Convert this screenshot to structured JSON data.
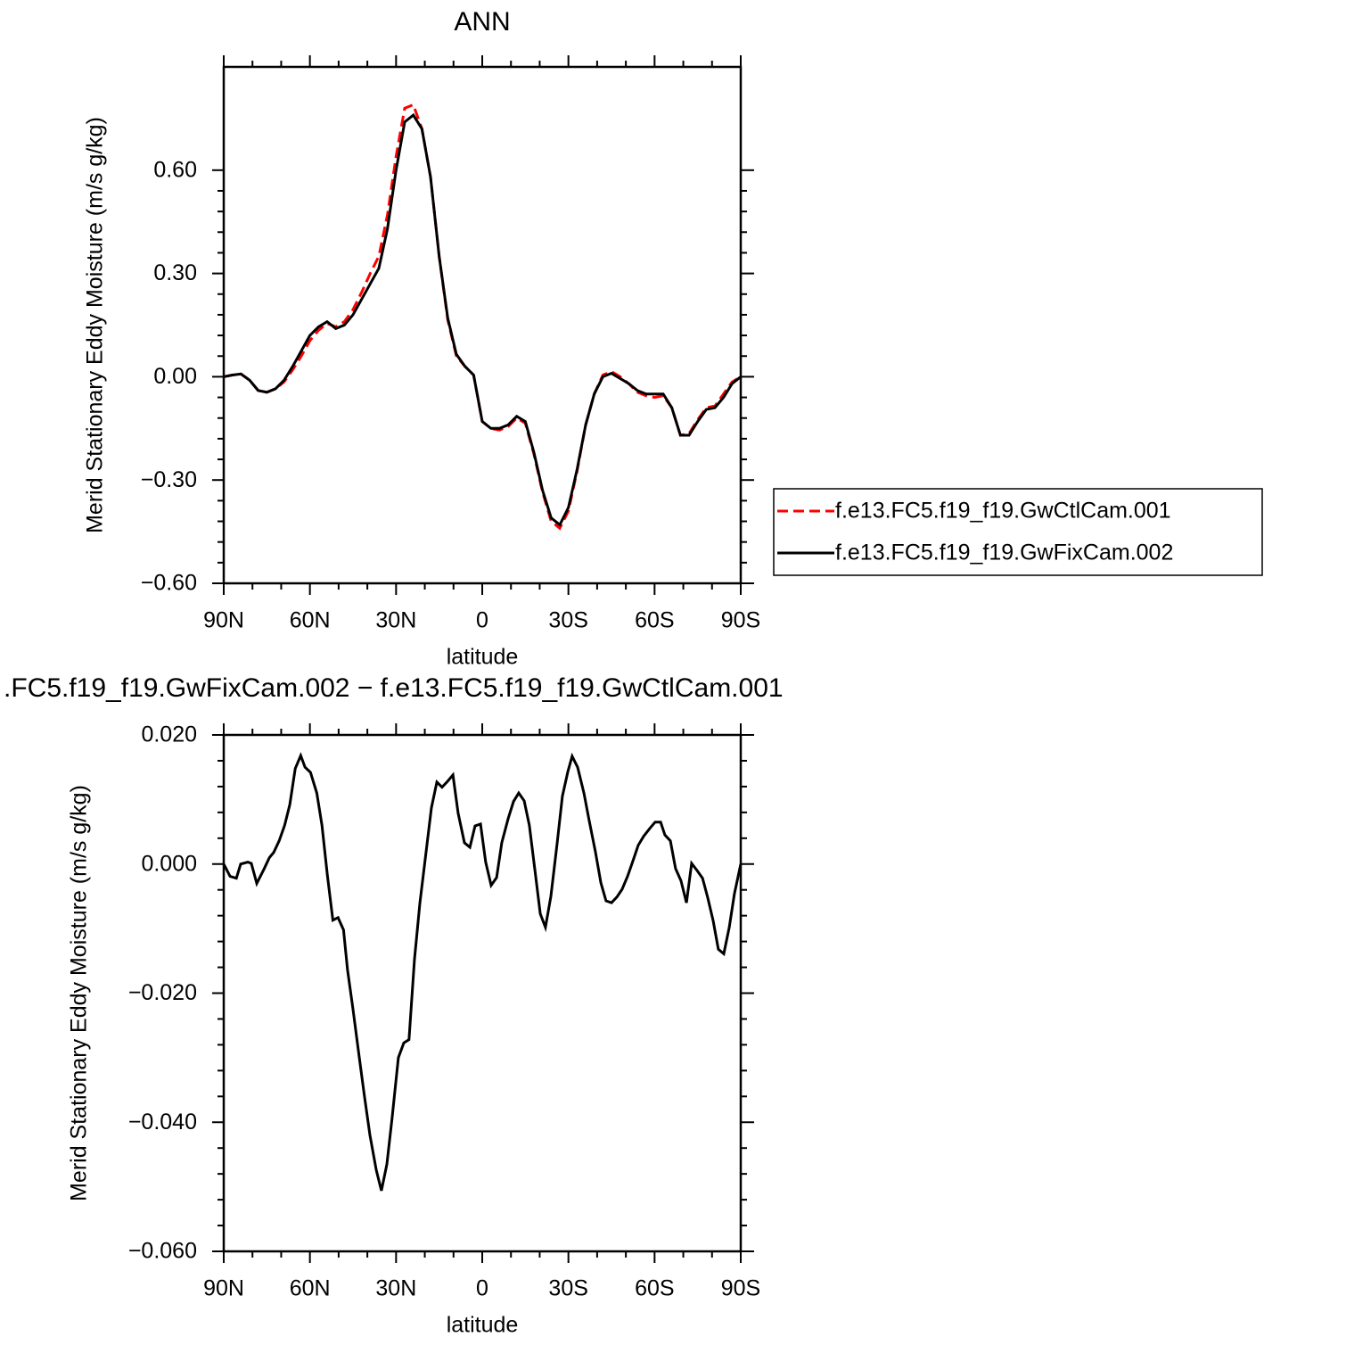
{
  "chart_data": [
    {
      "type": "line",
      "title": "ANN",
      "xlabel": "latitude",
      "ylabel": "Merid Stationary Eddy Moisture (m/s g/kg)",
      "x": [
        90,
        87,
        84,
        81,
        78,
        75,
        72,
        69,
        66,
        63,
        60,
        57,
        54,
        51,
        48,
        45,
        42,
        39,
        36,
        33,
        30,
        27,
        24,
        21,
        18,
        15,
        12,
        9,
        6,
        3,
        0,
        -3,
        -6,
        -9,
        -12,
        -15,
        -18,
        -21,
        -24,
        -27,
        -30,
        -33,
        -36,
        -39,
        -42,
        -45,
        -48,
        -51,
        -54,
        -57,
        -60,
        -63,
        -66,
        -69,
        -72,
        -75,
        -78,
        -81,
        -84,
        -87,
        -90
      ],
      "series": [
        {
          "name": "f.e13.FC5.f19_f19.GwCtlCam.001",
          "color": "#ff0000",
          "linestyle": "dashed",
          "values": [
            0,
            0.005,
            0.008,
            -0.01,
            -0.04,
            -0.045,
            -0.035,
            -0.015,
            0.02,
            0.06,
            0.105,
            0.135,
            0.155,
            0.145,
            0.16,
            0.195,
            0.245,
            0.3,
            0.35,
            0.47,
            0.64,
            0.78,
            0.79,
            0.72,
            0.58,
            0.35,
            0.165,
            0.06,
            0.03,
            0.005,
            -0.13,
            -0.15,
            -0.155,
            -0.145,
            -0.12,
            -0.135,
            -0.225,
            -0.335,
            -0.42,
            -0.44,
            -0.39,
            -0.275,
            -0.14,
            -0.05,
            0.005,
            0.015,
            0,
            -0.02,
            -0.045,
            -0.055,
            -0.06,
            -0.055,
            -0.09,
            -0.17,
            -0.165,
            -0.125,
            -0.09,
            -0.085,
            -0.05,
            -0.015,
            0
          ]
        },
        {
          "name": "f.e13.FC5.f19_f19.GwFixCam.002",
          "color": "#000000",
          "linestyle": "solid",
          "values": [
            0,
            0.005,
            0.008,
            -0.01,
            -0.04,
            -0.045,
            -0.035,
            -0.01,
            0.03,
            0.075,
            0.12,
            0.145,
            0.16,
            0.14,
            0.15,
            0.18,
            0.225,
            0.27,
            0.315,
            0.43,
            0.6,
            0.74,
            0.76,
            0.72,
            0.58,
            0.35,
            0.17,
            0.065,
            0.03,
            0.005,
            -0.13,
            -0.15,
            -0.15,
            -0.14,
            -0.115,
            -0.13,
            -0.22,
            -0.33,
            -0.41,
            -0.43,
            -0.38,
            -0.27,
            -0.14,
            -0.05,
            0,
            0.01,
            -0.005,
            -0.02,
            -0.04,
            -0.05,
            -0.05,
            -0.05,
            -0.09,
            -0.17,
            -0.17,
            -0.13,
            -0.095,
            -0.09,
            -0.06,
            -0.02,
            0
          ]
        }
      ],
      "xlim": [
        90,
        -90
      ],
      "xticks": [
        {
          "value": 90,
          "label": "90N"
        },
        {
          "value": 60,
          "label": "60N"
        },
        {
          "value": 30,
          "label": "30N"
        },
        0,
        {
          "value": -30,
          "label": "30S"
        },
        {
          "value": -60,
          "label": "60S"
        },
        {
          "value": -90,
          "label": "90S"
        }
      ],
      "ylim": [
        -0.6,
        0.9
      ],
      "yticks": [
        {
          "value": -0.6,
          "label": "−0.60"
        },
        {
          "value": -0.3,
          "label": "−0.30"
        },
        {
          "value": 0,
          "label": "0.00"
        },
        {
          "value": 0.3,
          "label": "0.30"
        },
        {
          "value": 0.6,
          "label": "0.60"
        }
      ],
      "legend": "right"
    },
    {
      "type": "line",
      "title": ".FC5.f19_f19.GwFixCam.002 − f.e13.FC5.f19_f19.GwCtlCam.001",
      "xlabel": "latitude",
      "ylabel": "Merid Stationary Eddy Moisture (m/s g/kg)",
      "x": [
        90,
        87.8,
        85.6,
        84.1,
        81.6,
        80.4,
        78.5,
        76.0,
        74.1,
        72.6,
        70.7,
        68.8,
        67.0,
        65.1,
        63.2,
        61.7,
        59.8,
        57.6,
        55.8,
        53.9,
        52.0,
        50.2,
        48.3,
        46.9,
        45.0,
        42.8,
        41.0,
        39.1,
        36.9,
        35.1,
        33.2,
        31.4,
        29.2,
        27.3,
        25.5,
        23.6,
        21.7,
        19.9,
        17.7,
        15.8,
        14.0,
        12.1,
        10.2,
        8.4,
        6.2,
        4.3,
        2.5,
        0.6,
        -1.2,
        -3.1,
        -5.0,
        -6.8,
        -9.0,
        -10.9,
        -12.7,
        -14.6,
        -16.4,
        -18.3,
        -20.2,
        -22.0,
        -23.9,
        -26.1,
        -27.9,
        -29.8,
        -31.3,
        -33.2,
        -35.4,
        -37.2,
        -39.4,
        -41.3,
        -43.1,
        -45.0,
        -46.9,
        -48.7,
        -50.6,
        -52.4,
        -54.3,
        -56.2,
        -58.3,
        -60.2,
        -62.1,
        -63.6,
        -65.5,
        -67.3,
        -69.2,
        -71.1,
        -72.9,
        -74.8,
        -76.7,
        -78.5,
        -80.4,
        -82.2,
        -84.1,
        -86.0,
        -87.8,
        -90
      ],
      "series": [
        {
          "color": "#000000",
          "linestyle": "solid",
          "values": [
            0,
            -0.0019,
            -0.0022,
            0,
            0.0003,
            0.0001,
            -0.003,
            -0.0008,
            0.001,
            0.0018,
            0.0036,
            0.006,
            0.0092,
            0.0148,
            0.0168,
            0.015,
            0.0142,
            0.011,
            0.006,
            -0.0018,
            -0.0087,
            -0.0083,
            -0.0102,
            -0.0164,
            -0.0225,
            -0.03,
            -0.036,
            -0.042,
            -0.0474,
            -0.0506,
            -0.0465,
            -0.0394,
            -0.03,
            -0.0277,
            -0.0272,
            -0.0148,
            -0.006,
            0.0006,
            0.0087,
            0.0127,
            0.0119,
            0.0128,
            0.0138,
            0.0079,
            0.0033,
            0.0026,
            0.0059,
            0.0062,
            0.0003,
            -0.0033,
            -0.0021,
            0.0033,
            0.007,
            0.0097,
            0.011,
            0.0098,
            0.006,
            -0.0008,
            -0.0077,
            -0.0098,
            -0.005,
            0.0033,
            0.0105,
            0.0143,
            0.0167,
            0.015,
            0.011,
            0.0068,
            0.0019,
            -0.0029,
            -0.0057,
            -0.006,
            -0.0051,
            -0.0039,
            -0.0019,
            0.0004,
            0.0029,
            0.0043,
            0.0055,
            0.0065,
            0.0065,
            0.0045,
            0.0036,
            -0.0007,
            -0.0026,
            -0.006,
            0.0001,
            -0.001,
            -0.0022,
            -0.0052,
            -0.0088,
            -0.0132,
            -0.0139,
            -0.0098,
            -0.0046,
            0
          ]
        }
      ],
      "xlim": [
        90,
        -90
      ],
      "xticks": [
        {
          "value": 90,
          "label": "90N"
        },
        {
          "value": 60,
          "label": "60N"
        },
        {
          "value": 30,
          "label": "30N"
        },
        0,
        {
          "value": -30,
          "label": "30S"
        },
        {
          "value": -60,
          "label": "60S"
        },
        {
          "value": -90,
          "label": "90S"
        }
      ],
      "ylim": [
        -0.06,
        0.02
      ],
      "yticks": [
        {
          "value": -0.06,
          "label": "−0.060"
        },
        {
          "value": -0.04,
          "label": "−0.040"
        },
        {
          "value": -0.02,
          "label": "−0.020"
        },
        {
          "value": 0,
          "label": "0.000"
        },
        {
          "value": 0.02,
          "label": "0.020"
        }
      ]
    }
  ]
}
